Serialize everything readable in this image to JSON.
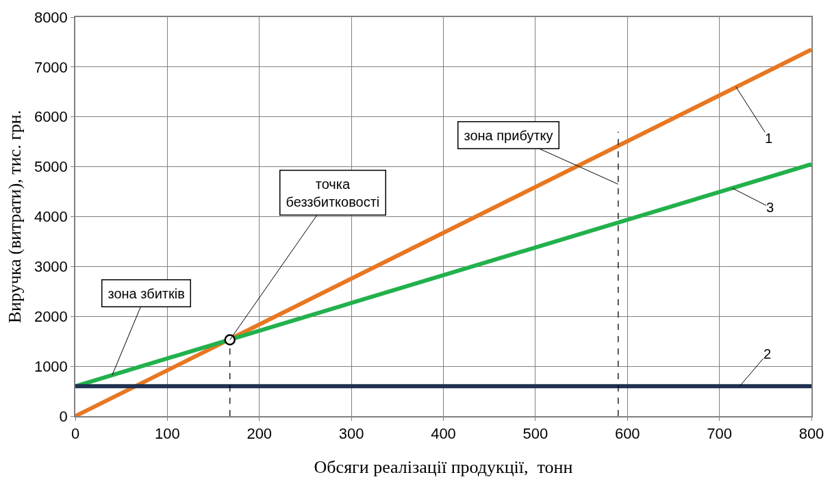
{
  "chart_data": {
    "type": "line",
    "xlabel": "Обсяги реалізації продукції,  тонн",
    "ylabel": "Виручка (витрати), тис. грн.",
    "xlim": [
      0,
      800
    ],
    "xticks": [
      0,
      100,
      200,
      300,
      400,
      500,
      600,
      700,
      800
    ],
    "ylim": [
      0,
      8000
    ],
    "yticks": [
      0,
      1000,
      2000,
      3000,
      4000,
      5000,
      6000,
      7000,
      8000
    ],
    "grid": true,
    "line_style": "solid",
    "marker": "none",
    "series": [
      {
        "color": "#e87722",
        "x": [
          0,
          800
        ],
        "values": [
          0,
          7350
        ]
      },
      {
        "color": "#22b14c",
        "x": [
          0,
          800
        ],
        "values": [
          600,
          5050
        ]
      },
      {
        "color": "#1f3050",
        "x": [
          0,
          800
        ],
        "values": [
          600,
          600
        ]
      },
      {
        "color": "#000000",
        "x": [
          168,
          168
        ],
        "values": [
          0,
          1530
        ],
        "line_style": "dashed"
      },
      {
        "color": "#000000",
        "x": [
          590,
          590
        ],
        "values": [
          0,
          5700
        ],
        "line_style": "dashed"
      },
      {
        "type": "scatter",
        "color": "#000000",
        "x": [
          168
        ],
        "values": [
          1530
        ],
        "marker": "circle"
      }
    ],
    "annotations": [
      {
        "text": "точка\nбеззбитковості",
        "x": 168,
        "y": 1530
      },
      {
        "text": "зона прибутку",
        "x": 590,
        "y": 4650
      },
      {
        "text": "зона збитків",
        "x": 40,
        "y": 820
      },
      {
        "text": "1",
        "x": 718,
        "y": 6600
      },
      {
        "text": "3",
        "x": 714,
        "y": 4570
      },
      {
        "text": "2",
        "x": 722,
        "y": 600
      }
    ]
  }
}
